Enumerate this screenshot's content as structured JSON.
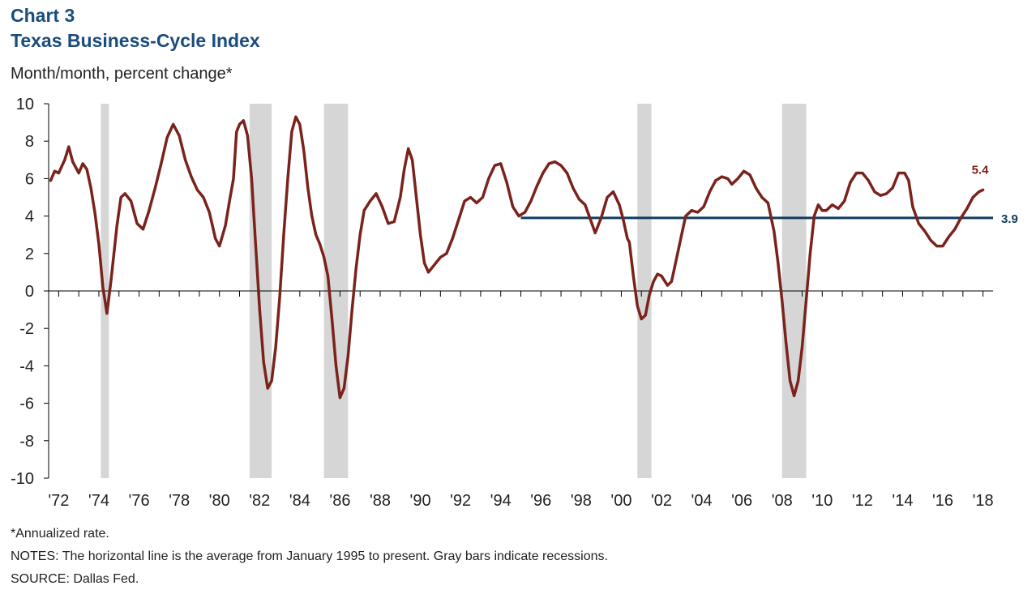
{
  "header": {
    "chart_number": "Chart 3",
    "title": "Texas Business-Cycle Index",
    "unit_label": "Month/month, percent change*"
  },
  "footnotes": {
    "annualized": "*Annualized rate.",
    "notes": "NOTES: The horizontal line is the average from January 1995 to present. Gray bars indicate recessions.",
    "source": "SOURCE: Dallas Fed."
  },
  "colors": {
    "series": "#7a231c",
    "average_line": "#0f3b5f",
    "recession": "#d6d6d6",
    "axis": "#000000",
    "title": "#1b4c7c"
  },
  "chart_data": {
    "type": "line",
    "title": "Texas Business-Cycle Index",
    "ylabel": "Month/month, percent change*",
    "xlabel": "",
    "ylim": [
      -10,
      10
    ],
    "yticks": [
      -10,
      -8,
      -6,
      -4,
      -2,
      0,
      2,
      4,
      6,
      8,
      10
    ],
    "xlim": [
      1971.5,
      2018.5
    ],
    "xticks": [
      {
        "year": 1972,
        "label": "'72"
      },
      {
        "year": 1974,
        "label": "'74"
      },
      {
        "year": 1976,
        "label": "'76"
      },
      {
        "year": 1978,
        "label": "'78"
      },
      {
        "year": 1980,
        "label": "'80"
      },
      {
        "year": 1982,
        "label": "'82"
      },
      {
        "year": 1984,
        "label": "'84"
      },
      {
        "year": 1986,
        "label": "'86"
      },
      {
        "year": 1988,
        "label": "'88"
      },
      {
        "year": 1990,
        "label": "'90"
      },
      {
        "year": 1992,
        "label": "'92"
      },
      {
        "year": 1994,
        "label": "'94"
      },
      {
        "year": 1996,
        "label": "'96"
      },
      {
        "year": 1998,
        "label": "'98"
      },
      {
        "year": 2000,
        "label": "'00"
      },
      {
        "year": 2002,
        "label": "'02"
      },
      {
        "year": 2004,
        "label": "'04"
      },
      {
        "year": 2006,
        "label": "'06"
      },
      {
        "year": 2008,
        "label": "'08"
      },
      {
        "year": 2010,
        "label": "'10"
      },
      {
        "year": 2012,
        "label": "'12"
      },
      {
        "year": 2014,
        "label": "'14"
      },
      {
        "year": 2016,
        "label": "'16"
      },
      {
        "year": 2018,
        "label": "'18"
      }
    ],
    "grid": false,
    "recessions": [
      {
        "start": 1974.1,
        "end": 1974.5
      },
      {
        "start": 1981.5,
        "end": 1982.6
      },
      {
        "start": 1985.2,
        "end": 1986.4
      },
      {
        "start": 2000.8,
        "end": 2001.5
      },
      {
        "start": 2008.0,
        "end": 2009.2
      }
    ],
    "average": {
      "value": 3.9,
      "start": 1995.0,
      "end": 2018.5,
      "label": "3.9"
    },
    "last_value_label": "5.4",
    "series": [
      {
        "values": [
          [
            1971.6,
            5.9
          ],
          [
            1971.8,
            6.4
          ],
          [
            1972.0,
            6.3
          ],
          [
            1972.3,
            7.0
          ],
          [
            1972.5,
            7.7
          ],
          [
            1972.7,
            6.9
          ],
          [
            1973.0,
            6.3
          ],
          [
            1973.2,
            6.8
          ],
          [
            1973.4,
            6.5
          ],
          [
            1973.6,
            5.5
          ],
          [
            1973.8,
            4.2
          ],
          [
            1974.0,
            2.5
          ],
          [
            1974.2,
            0.2
          ],
          [
            1974.4,
            -1.2
          ],
          [
            1974.6,
            0.5
          ],
          [
            1974.9,
            3.5
          ],
          [
            1975.1,
            5.0
          ],
          [
            1975.3,
            5.2
          ],
          [
            1975.6,
            4.8
          ],
          [
            1975.9,
            3.6
          ],
          [
            1976.2,
            3.3
          ],
          [
            1976.5,
            4.3
          ],
          [
            1976.8,
            5.5
          ],
          [
            1977.1,
            6.8
          ],
          [
            1977.4,
            8.2
          ],
          [
            1977.7,
            8.9
          ],
          [
            1978.0,
            8.3
          ],
          [
            1978.3,
            7.0
          ],
          [
            1978.6,
            6.1
          ],
          [
            1978.9,
            5.4
          ],
          [
            1979.2,
            5.0
          ],
          [
            1979.5,
            4.2
          ],
          [
            1979.8,
            2.8
          ],
          [
            1980.0,
            2.4
          ],
          [
            1980.3,
            3.5
          ],
          [
            1980.5,
            4.8
          ],
          [
            1980.7,
            6.0
          ],
          [
            1980.85,
            8.5
          ],
          [
            1981.0,
            8.9
          ],
          [
            1981.2,
            9.1
          ],
          [
            1981.4,
            8.3
          ],
          [
            1981.6,
            6.0
          ],
          [
            1981.8,
            2.5
          ],
          [
            1982.0,
            -1.0
          ],
          [
            1982.2,
            -3.8
          ],
          [
            1982.4,
            -5.2
          ],
          [
            1982.6,
            -4.8
          ],
          [
            1982.8,
            -3.0
          ],
          [
            1983.0,
            -0.3
          ],
          [
            1983.2,
            3.0
          ],
          [
            1983.4,
            6.0
          ],
          [
            1983.6,
            8.5
          ],
          [
            1983.8,
            9.3
          ],
          [
            1984.0,
            8.9
          ],
          [
            1984.2,
            7.5
          ],
          [
            1984.4,
            5.5
          ],
          [
            1984.6,
            4.0
          ],
          [
            1984.8,
            3.0
          ],
          [
            1985.0,
            2.5
          ],
          [
            1985.2,
            1.8
          ],
          [
            1985.4,
            0.8
          ],
          [
            1985.6,
            -1.5
          ],
          [
            1985.8,
            -4.0
          ],
          [
            1986.0,
            -5.7
          ],
          [
            1986.2,
            -5.2
          ],
          [
            1986.4,
            -3.5
          ],
          [
            1986.6,
            -1.0
          ],
          [
            1986.8,
            1.2
          ],
          [
            1987.0,
            3.0
          ],
          [
            1987.2,
            4.3
          ],
          [
            1987.5,
            4.8
          ],
          [
            1987.8,
            5.2
          ],
          [
            1988.1,
            4.5
          ],
          [
            1988.4,
            3.6
          ],
          [
            1988.7,
            3.7
          ],
          [
            1989.0,
            5.0
          ],
          [
            1989.2,
            6.5
          ],
          [
            1989.4,
            7.6
          ],
          [
            1989.6,
            7.0
          ],
          [
            1989.8,
            5.0
          ],
          [
            1990.0,
            3.0
          ],
          [
            1990.2,
            1.5
          ],
          [
            1990.4,
            1.0
          ],
          [
            1990.7,
            1.4
          ],
          [
            1991.0,
            1.8
          ],
          [
            1991.3,
            2.0
          ],
          [
            1991.6,
            2.8
          ],
          [
            1991.9,
            3.8
          ],
          [
            1992.2,
            4.8
          ],
          [
            1992.5,
            5.0
          ],
          [
            1992.8,
            4.7
          ],
          [
            1993.1,
            5.0
          ],
          [
            1993.4,
            6.0
          ],
          [
            1993.7,
            6.7
          ],
          [
            1994.0,
            6.8
          ],
          [
            1994.3,
            5.8
          ],
          [
            1994.6,
            4.5
          ],
          [
            1994.9,
            4.0
          ],
          [
            1995.2,
            4.2
          ],
          [
            1995.5,
            4.8
          ],
          [
            1995.8,
            5.6
          ],
          [
            1996.1,
            6.3
          ],
          [
            1996.4,
            6.8
          ],
          [
            1996.7,
            6.9
          ],
          [
            1997.0,
            6.7
          ],
          [
            1997.3,
            6.3
          ],
          [
            1997.6,
            5.5
          ],
          [
            1997.9,
            4.9
          ],
          [
            1998.2,
            4.6
          ],
          [
            1998.5,
            3.7
          ],
          [
            1998.7,
            3.1
          ],
          [
            1999.0,
            3.9
          ],
          [
            1999.3,
            5.0
          ],
          [
            1999.6,
            5.3
          ],
          [
            1999.9,
            4.6
          ],
          [
            2000.1,
            3.8
          ],
          [
            2000.3,
            2.8
          ],
          [
            2000.4,
            2.6
          ],
          [
            2000.6,
            0.8
          ],
          [
            2000.8,
            -0.8
          ],
          [
            2001.0,
            -1.5
          ],
          [
            2001.2,
            -1.3
          ],
          [
            2001.4,
            -0.2
          ],
          [
            2001.6,
            0.5
          ],
          [
            2001.8,
            0.9
          ],
          [
            2002.0,
            0.8
          ],
          [
            2002.3,
            0.3
          ],
          [
            2002.5,
            0.5
          ],
          [
            2002.7,
            1.5
          ],
          [
            2003.0,
            3.0
          ],
          [
            2003.2,
            4.0
          ],
          [
            2003.5,
            4.3
          ],
          [
            2003.8,
            4.2
          ],
          [
            2004.1,
            4.5
          ],
          [
            2004.4,
            5.3
          ],
          [
            2004.7,
            5.9
          ],
          [
            2005.0,
            6.1
          ],
          [
            2005.3,
            6.0
          ],
          [
            2005.5,
            5.7
          ],
          [
            2005.8,
            6.0
          ],
          [
            2006.1,
            6.4
          ],
          [
            2006.4,
            6.2
          ],
          [
            2006.7,
            5.5
          ],
          [
            2007.0,
            5.0
          ],
          [
            2007.3,
            4.7
          ],
          [
            2007.6,
            3.2
          ],
          [
            2007.8,
            1.5
          ],
          [
            2008.0,
            -0.5
          ],
          [
            2008.2,
            -2.8
          ],
          [
            2008.4,
            -4.8
          ],
          [
            2008.6,
            -5.6
          ],
          [
            2008.8,
            -4.8
          ],
          [
            2009.0,
            -3.0
          ],
          [
            2009.2,
            -0.5
          ],
          [
            2009.4,
            2.0
          ],
          [
            2009.6,
            4.0
          ],
          [
            2009.8,
            4.6
          ],
          [
            2010.0,
            4.3
          ],
          [
            2010.2,
            4.3
          ],
          [
            2010.5,
            4.6
          ],
          [
            2010.8,
            4.4
          ],
          [
            2011.1,
            4.8
          ],
          [
            2011.4,
            5.8
          ],
          [
            2011.7,
            6.3
          ],
          [
            2012.0,
            6.3
          ],
          [
            2012.3,
            5.9
          ],
          [
            2012.6,
            5.3
          ],
          [
            2012.9,
            5.1
          ],
          [
            2013.2,
            5.2
          ],
          [
            2013.5,
            5.5
          ],
          [
            2013.8,
            6.3
          ],
          [
            2014.1,
            6.3
          ],
          [
            2014.3,
            5.9
          ],
          [
            2014.5,
            4.5
          ],
          [
            2014.8,
            3.6
          ],
          [
            2015.1,
            3.2
          ],
          [
            2015.4,
            2.7
          ],
          [
            2015.7,
            2.4
          ],
          [
            2016.0,
            2.4
          ],
          [
            2016.3,
            2.9
          ],
          [
            2016.6,
            3.3
          ],
          [
            2016.9,
            3.9
          ],
          [
            2017.2,
            4.4
          ],
          [
            2017.5,
            5.0
          ],
          [
            2017.8,
            5.3
          ],
          [
            2018.0,
            5.4
          ]
        ]
      }
    ]
  }
}
